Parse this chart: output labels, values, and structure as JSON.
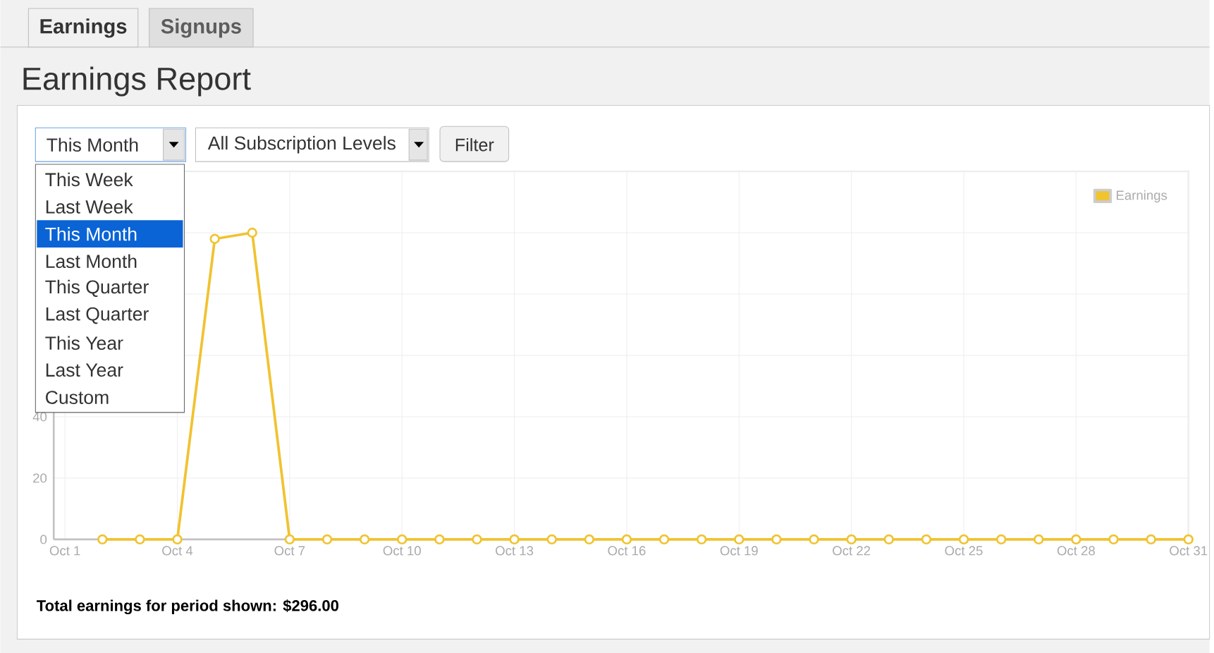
{
  "chart_data": {
    "type": "line",
    "title": "Earnings Report",
    "categories": [
      "Oct 1",
      null,
      null,
      "Oct 4",
      null,
      null,
      "Oct 7",
      null,
      null,
      "Oct 10",
      null,
      null,
      "Oct 13",
      null,
      null,
      "Oct 16",
      null,
      null,
      "Oct 19",
      null,
      null,
      "Oct 22",
      null,
      null,
      "Oct 25",
      null,
      null,
      "Oct 28",
      null,
      null,
      "Oct 31"
    ],
    "series": [
      {
        "name": "Earnings",
        "color": "#f0c330",
        "values": [
          null,
          0,
          0,
          0,
          98,
          100,
          0,
          0,
          0,
          0,
          0,
          0,
          0,
          0,
          0,
          0,
          0,
          0,
          0,
          0,
          0,
          0,
          0,
          0,
          0,
          0,
          0,
          0,
          0,
          0,
          0
        ]
      }
    ],
    "ylim": [
      0,
      120
    ],
    "yticks": [
      0,
      20,
      40,
      {
        "value": 60,
        "label": null
      },
      {
        "value": 80,
        "label": null
      },
      {
        "value": 100,
        "label": null
      },
      {
        "value": 120,
        "label": null
      }
    ],
    "grid": true,
    "legend": "top right",
    "marker": "circle",
    "line_style": "solid",
    "annotations": [
      "Earnings",
      "Signups",
      "This Month",
      "All Subscription Levels",
      "Filter",
      "This Week",
      "Last Week",
      "This Month",
      "Last Month",
      "This Quarter",
      "Last Quarter",
      "This Year",
      "Last Year",
      "Custom",
      "Total earnings for period shown: $296.00"
    ]
  }
}
